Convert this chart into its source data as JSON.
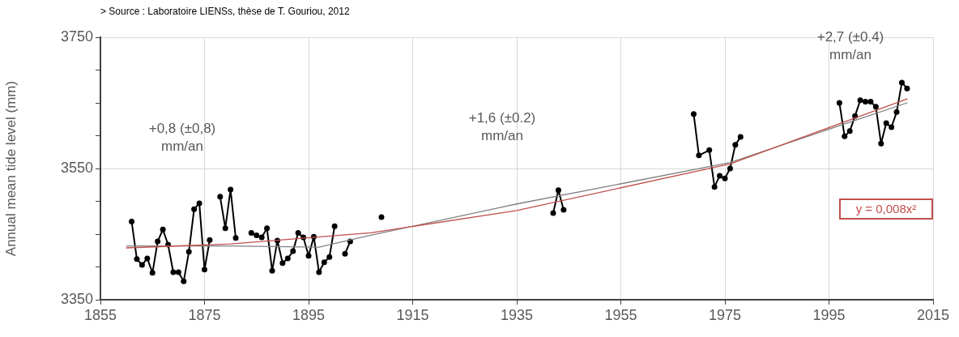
{
  "chart_data": {
    "type": "line",
    "ylabel": "Annual mean tide level (mm)",
    "xlim": [
      1855,
      2015
    ],
    "xticks": [
      1855,
      1875,
      1895,
      1915,
      1935,
      1955,
      1975,
      1995,
      2015
    ],
    "ylim": [
      3350,
      3750
    ],
    "yticks": [
      3350,
      {
        "value": 3400,
        "label": null
      },
      {
        "value": 3450,
        "label": null
      },
      {
        "value": 3500,
        "label": null
      },
      3550,
      {
        "value": 3600,
        "label": null
      },
      {
        "value": 3650,
        "label": null
      },
      {
        "value": 3700,
        "label": null
      },
      3750
    ],
    "grid": true,
    "legend": false,
    "series": [
      {
        "color": "#000000",
        "marker": "circle",
        "x": [
          1861,
          1862,
          1863,
          1864,
          1865,
          1866,
          1867,
          1868,
          1869,
          1870,
          1871,
          1872,
          1873,
          1874,
          1875,
          1876,
          1877,
          1878,
          1879,
          1880,
          1881,
          1882,
          1884,
          1885,
          1886,
          1887,
          1888,
          1889,
          1890,
          1891,
          1892,
          1893,
          1894,
          1895,
          1896,
          1897,
          1898,
          1899,
          1900,
          1901,
          1902,
          1903,
          1905,
          1909,
          1920,
          1942,
          1943,
          1944,
          1955,
          1969,
          1970,
          1972,
          1973,
          1974,
          1975,
          1976,
          1977,
          1978,
          1985,
          1997,
          1998,
          1999,
          2000,
          2001,
          2002,
          2003,
          2004,
          2005,
          2006,
          2007,
          2008,
          2009,
          2010
        ],
        "values": [
          3469,
          3412,
          3403,
          3413,
          3391,
          3439,
          3457,
          3434,
          3392,
          3392,
          3378,
          3423,
          3488,
          3497,
          3396,
          3441,
          null,
          3507,
          3459,
          3518,
          3444,
          null,
          3452,
          3448,
          3445,
          3459,
          3394,
          3440,
          3406,
          3413,
          3424,
          3452,
          3445,
          3417,
          3446,
          3392,
          3407,
          3415,
          3462,
          null,
          3420,
          3439,
          null,
          3476,
          null,
          3482,
          3517,
          3487,
          null,
          3633,
          3570,
          3578,
          3522,
          3539,
          3535,
          3550,
          3586,
          3598,
          null,
          3650,
          3599,
          3607,
          3630,
          3654,
          3652,
          3652,
          3644,
          3588,
          3619,
          3613,
          3636,
          3681,
          3672
        ]
      },
      {
        "color": "#808080",
        "marker": "none",
        "x": [
          1860,
          1880,
          1897,
          1905,
          1935,
          1976,
          2010
        ],
        "values": [
          3432,
          3432,
          3430,
          3445,
          3496,
          3559,
          3650
        ]
      },
      {
        "color": "#c0504d",
        "marker": "none",
        "x": [
          1860,
          1880,
          1907,
          1935,
          1976,
          2010
        ],
        "values": [
          3429,
          3435,
          3452,
          3486,
          3557,
          3656
        ]
      }
    ],
    "annotations": [
      "> Source : Laboratoire LIENSs, thèse de T. Gouriou, 2012",
      "+0,8 (±0,8)\nmm/an",
      "+1,6 (±0.2)\nmm/an",
      "+2,7 (±0.4)\nmm/an",
      "y = 0,008x²"
    ]
  }
}
